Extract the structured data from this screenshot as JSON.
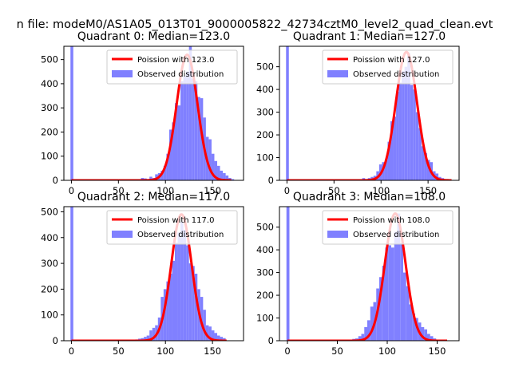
{
  "figure": {
    "title": "n file: modeM0/AS1A05_013T01_9000005822_42734cztM0_level2_quad_clean.evt"
  },
  "colors": {
    "observed": "#8080ff",
    "poisson": "#ff0000",
    "axis": "#000000"
  },
  "chart_data": [
    {
      "type": "bar",
      "title": "Quadrant 0: Median=123.0",
      "median": 123.0,
      "xlim": [
        -8,
        183
      ],
      "ylim": [
        0,
        555
      ],
      "xticks": [
        0,
        50,
        100,
        150
      ],
      "yticks": [
        0,
        100,
        200,
        300,
        400,
        500
      ],
      "legend_location": "upper right",
      "series": [
        {
          "name": "Poission with 123.0",
          "kind": "line",
          "mean": 123.0,
          "peak": 520,
          "x_start": 0,
          "x_end": 170
        },
        {
          "name": "Observed distribution",
          "kind": "histogram",
          "bins": [
            [
              -1,
              2,
              1000
            ],
            [
              74,
              77,
              10
            ],
            [
              77,
              80,
              8
            ],
            [
              80,
              83,
              5
            ],
            [
              83,
              86,
              15
            ],
            [
              86,
              89,
              10
            ],
            [
              89,
              92,
              25
            ],
            [
              92,
              95,
              30
            ],
            [
              95,
              98,
              40
            ],
            [
              98,
              101,
              60
            ],
            [
              101,
              104,
              110
            ],
            [
              104,
              107,
              210
            ],
            [
              107,
              110,
              240
            ],
            [
              110,
              113,
              320
            ],
            [
              113,
              116,
              310
            ],
            [
              116,
              119,
              410
            ],
            [
              119,
              122,
              430
            ],
            [
              122,
              125,
              450
            ],
            [
              125,
              128,
              560
            ],
            [
              128,
              131,
              420
            ],
            [
              131,
              134,
              410
            ],
            [
              134,
              137,
              345
            ],
            [
              137,
              140,
              340
            ],
            [
              140,
              143,
              260
            ],
            [
              143,
              146,
              180
            ],
            [
              146,
              149,
              170
            ],
            [
              149,
              152,
              110
            ],
            [
              152,
              155,
              80
            ],
            [
              155,
              158,
              60
            ],
            [
              158,
              161,
              40
            ],
            [
              161,
              164,
              30
            ],
            [
              164,
              167,
              20
            ],
            [
              167,
              170,
              10
            ],
            [
              170,
              173,
              5
            ]
          ]
        }
      ]
    },
    {
      "type": "bar",
      "title": "Quadrant 1: Median=127.0",
      "median": 127.0,
      "xlim": [
        -8,
        183
      ],
      "ylim": [
        0,
        590
      ],
      "xticks": [
        0,
        50,
        100,
        150
      ],
      "yticks": [
        0,
        100,
        200,
        300,
        400,
        500
      ],
      "legend_location": "upper right",
      "series": [
        {
          "name": "Poission with 127.0",
          "kind": "line",
          "mean": 127.0,
          "peak": 565,
          "x_start": 0,
          "x_end": 175
        },
        {
          "name": "Observed distribution",
          "kind": "histogram",
          "bins": [
            [
              -1,
              2,
              1000
            ],
            [
              80,
              83,
              10
            ],
            [
              83,
              86,
              5
            ],
            [
              86,
              89,
              10
            ],
            [
              89,
              92,
              15
            ],
            [
              92,
              95,
              20
            ],
            [
              95,
              98,
              40
            ],
            [
              98,
              101,
              70
            ],
            [
              101,
              104,
              80
            ],
            [
              104,
              107,
              90
            ],
            [
              107,
              110,
              170
            ],
            [
              110,
              113,
              260
            ],
            [
              113,
              116,
              280
            ],
            [
              116,
              119,
              390
            ],
            [
              119,
              122,
              430
            ],
            [
              122,
              125,
              480
            ],
            [
              125,
              128,
              500
            ],
            [
              128,
              131,
              560
            ],
            [
              131,
              134,
              420
            ],
            [
              134,
              137,
              400
            ],
            [
              137,
              140,
              300
            ],
            [
              140,
              143,
              230
            ],
            [
              143,
              146,
              150
            ],
            [
              146,
              149,
              120
            ],
            [
              149,
              152,
              90
            ],
            [
              152,
              155,
              80
            ],
            [
              155,
              158,
              40
            ],
            [
              158,
              161,
              30
            ],
            [
              161,
              164,
              15
            ],
            [
              164,
              167,
              10
            ]
          ]
        }
      ]
    },
    {
      "type": "bar",
      "title": "Quadrant 2: Median=117.0",
      "median": 117.0,
      "xlim": [
        -8,
        183
      ],
      "ylim": [
        0,
        520
      ],
      "xticks": [
        0,
        50,
        100,
        150
      ],
      "yticks": [
        0,
        100,
        200,
        300,
        400,
        500
      ],
      "legend_location": "upper right",
      "series": [
        {
          "name": "Poission with 117.0",
          "kind": "line",
          "mean": 117.0,
          "peak": 490,
          "x_start": 0,
          "x_end": 165
        },
        {
          "name": "Observed distribution",
          "kind": "histogram",
          "bins": [
            [
              -1,
              2,
              1000
            ],
            [
              68,
              71,
              5
            ],
            [
              71,
              74,
              8
            ],
            [
              74,
              77,
              10
            ],
            [
              77,
              80,
              15
            ],
            [
              80,
              83,
              20
            ],
            [
              83,
              86,
              40
            ],
            [
              86,
              89,
              50
            ],
            [
              89,
              92,
              60
            ],
            [
              92,
              95,
              90
            ],
            [
              95,
              98,
              170
            ],
            [
              98,
              101,
              200
            ],
            [
              101,
              104,
              230
            ],
            [
              104,
              107,
              260
            ],
            [
              107,
              110,
              310
            ],
            [
              110,
              113,
              380
            ],
            [
              113,
              116,
              420
            ],
            [
              116,
              119,
              460
            ],
            [
              119,
              122,
              430
            ],
            [
              122,
              125,
              370
            ],
            [
              125,
              128,
              300
            ],
            [
              128,
              131,
              290
            ],
            [
              131,
              134,
              260
            ],
            [
              134,
              137,
              200
            ],
            [
              137,
              140,
              170
            ],
            [
              140,
              143,
              120
            ],
            [
              143,
              146,
              60
            ],
            [
              146,
              149,
              55
            ],
            [
              149,
              152,
              40
            ],
            [
              152,
              155,
              30
            ],
            [
              155,
              158,
              20
            ],
            [
              158,
              161,
              15
            ],
            [
              161,
              164,
              10
            ]
          ]
        }
      ]
    },
    {
      "type": "bar",
      "title": "Quadrant 3: Median=108.0",
      "median": 108.0,
      "xlim": [
        -8,
        172
      ],
      "ylim": [
        0,
        590
      ],
      "xticks": [
        0,
        50,
        100,
        150
      ],
      "yticks": [
        0,
        100,
        200,
        300,
        400,
        500
      ],
      "legend_location": "upper right",
      "series": [
        {
          "name": "Poission with 108.0",
          "kind": "line",
          "mean": 108.0,
          "peak": 560,
          "x_start": 0,
          "x_end": 160
        },
        {
          "name": "Observed distribution",
          "kind": "histogram",
          "bins": [
            [
              -1,
              2,
              1000
            ],
            [
              62,
              65,
              5
            ],
            [
              65,
              68,
              8
            ],
            [
              68,
              71,
              10
            ],
            [
              71,
              74,
              20
            ],
            [
              74,
              77,
              30
            ],
            [
              77,
              80,
              60
            ],
            [
              80,
              83,
              90
            ],
            [
              83,
              86,
              150
            ],
            [
              86,
              89,
              170
            ],
            [
              89,
              92,
              230
            ],
            [
              92,
              95,
              280
            ],
            [
              95,
              98,
              330
            ],
            [
              98,
              101,
              410
            ],
            [
              101,
              104,
              420
            ],
            [
              104,
              107,
              410
            ],
            [
              107,
              110,
              480
            ],
            [
              110,
              113,
              560
            ],
            [
              113,
              116,
              430
            ],
            [
              116,
              119,
              300
            ],
            [
              119,
              122,
              240
            ],
            [
              122,
              125,
              160
            ],
            [
              125,
              128,
              120
            ],
            [
              128,
              131,
              100
            ],
            [
              131,
              134,
              80
            ],
            [
              134,
              137,
              60
            ],
            [
              137,
              140,
              50
            ],
            [
              140,
              143,
              30
            ],
            [
              143,
              146,
              20
            ],
            [
              146,
              149,
              10
            ],
            [
              149,
              152,
              5
            ]
          ]
        }
      ]
    }
  ]
}
